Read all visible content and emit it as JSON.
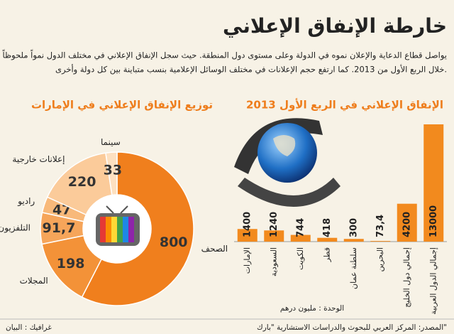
{
  "title": "خارطة الإنفاق الإعلاني",
  "intro": [
    "يواصل قطاع الدعاية والإعلان نموه في الدولة وعلى مستوى دول المنطقة. حيث سجل الإنفاق الإعلاني في مختلف الدول نمواً ملحوظاً",
    "خلال الربع الأول من 2013. كما ارتفع حجم الإعلانات في مختلف الوسائل الإعلامية بنسب متباينة بين كل دولة وأخرى."
  ],
  "chart_data": [
    {
      "type": "bar",
      "title": "الإنفاق الإعلاني في الربع الأول 2013",
      "categories": [
        "الإمارات",
        "السعودية",
        "الكويت",
        "قطر",
        "سلطنة عمان",
        "البحرين",
        "إجمالي دول الخليج",
        "إجمالي الدول العربية"
      ],
      "values": [
        1400,
        1240,
        744,
        418,
        300,
        73.4,
        4200,
        13000
      ],
      "value_labels": [
        "1400",
        "1240",
        "744",
        "418",
        "300",
        "73,4",
        "4200",
        "13000"
      ],
      "color": "#f28a1e",
      "unit": "الوحدة : مليون درهم"
    },
    {
      "type": "donut",
      "title": "توزيع الإنفاق الإعلاني في الإمارات",
      "categories": [
        "الصحف",
        "المجلات",
        "التلفزيون",
        "راديو",
        "إعلانات خارجية",
        "سينما"
      ],
      "values": [
        800,
        198,
        91.7,
        47,
        220,
        33
      ],
      "value_labels": [
        "800",
        "198",
        "91,7",
        "47",
        "220",
        "33"
      ],
      "colors": [
        "#f07f1d",
        "#f39238",
        "#f6a55a",
        "#f8b97a",
        "#fbcb9a",
        "#fde0c0"
      ]
    }
  ],
  "source": "المصدر: المركز العربي للبحوث والدراسات الاستشارية \"بارك\"",
  "credit": "غرافيك : البيان"
}
